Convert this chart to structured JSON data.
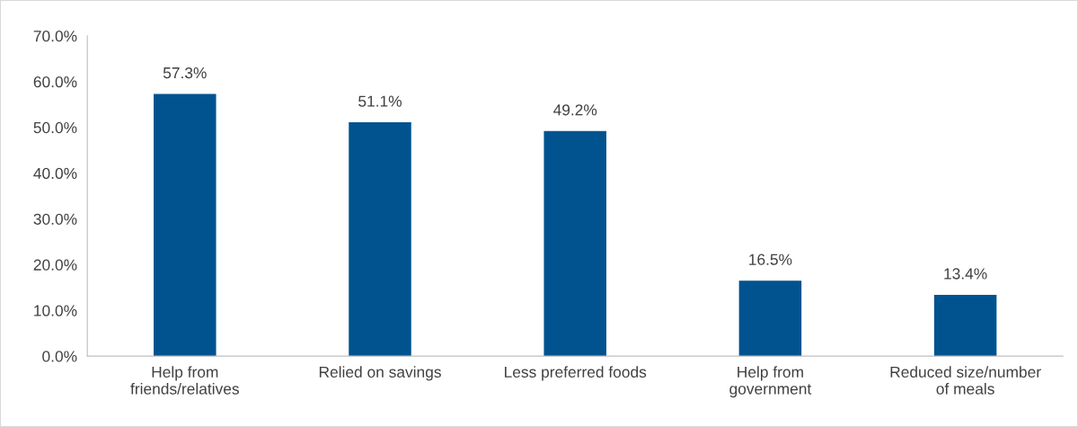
{
  "chart_data": {
    "type": "bar",
    "categories": [
      "Help from\nfriends/relatives",
      "Relied on savings",
      "Less preferred foods",
      "Help from\ngovernment",
      "Reduced size/number\nof meals"
    ],
    "values": [
      57.3,
      51.1,
      49.2,
      16.5,
      13.4
    ],
    "value_labels": [
      "57.3%",
      "51.1%",
      "49.2%",
      "16.5%",
      "13.4%"
    ],
    "color": "#00538f",
    "ylim": [
      0,
      70
    ],
    "yticks": [
      {
        "value": 0,
        "label": "0.0%"
      },
      {
        "value": 10,
        "label": "10.0%"
      },
      {
        "value": 20,
        "label": "20.0%"
      },
      {
        "value": 30,
        "label": "30.0%"
      },
      {
        "value": 40,
        "label": "40.0%"
      },
      {
        "value": 50,
        "label": "50.0%"
      },
      {
        "value": 60,
        "label": "60.0%"
      },
      {
        "value": 70,
        "label": "70.0%"
      }
    ],
    "grid": false,
    "legend": false
  }
}
